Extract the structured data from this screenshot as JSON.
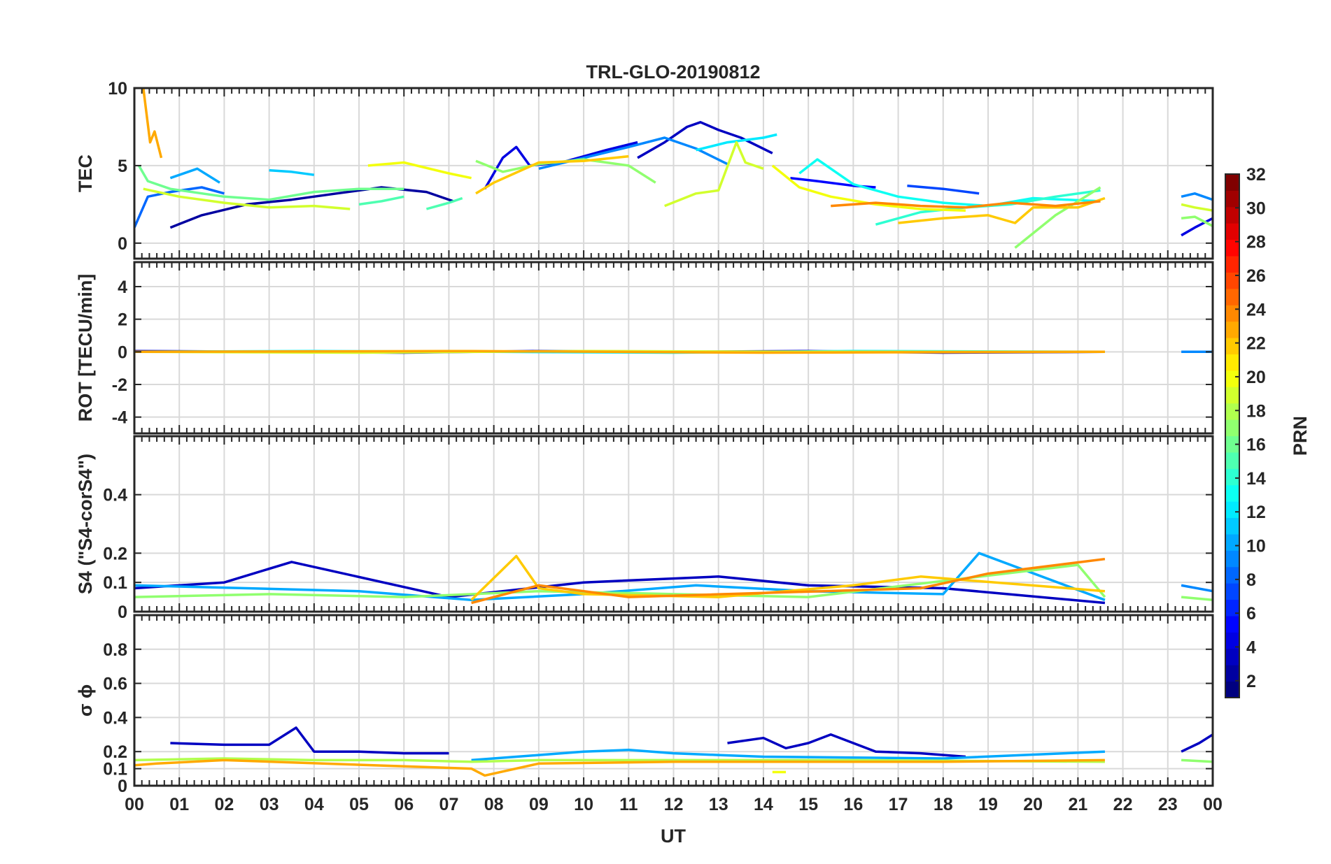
{
  "chart_data": {
    "type": "line",
    "title": "TRL-GLO-20190812",
    "xlabel": "UT",
    "x_ticks": [
      "00",
      "01",
      "02",
      "03",
      "04",
      "05",
      "06",
      "07",
      "08",
      "09",
      "10",
      "11",
      "12",
      "13",
      "14",
      "15",
      "16",
      "17",
      "18",
      "19",
      "20",
      "21",
      "22",
      "23",
      "00"
    ],
    "xlim": [
      0,
      24
    ],
    "grid": true,
    "colorbar": {
      "label": "PRN",
      "range": [
        1,
        32
      ],
      "ticks": [
        "2",
        "4",
        "6",
        "8",
        "10",
        "12",
        "14",
        "16",
        "18",
        "20",
        "22",
        "24",
        "26",
        "28",
        "30",
        "32"
      ],
      "colormap": "jet"
    },
    "panels": [
      {
        "ylabel": "TEC",
        "ylim": [
          -1,
          10
        ],
        "yticks": [
          "0",
          "5",
          "10"
        ],
        "series": [
          {
            "prn": 2,
            "x": [
              0.8,
              1.5,
              2.5,
              3.5,
              4.5,
              5.5,
              6.5,
              7.1
            ],
            "y": [
              1.0,
              1.8,
              2.5,
              2.8,
              3.2,
              3.6,
              3.3,
              2.7
            ]
          },
          {
            "prn": 3,
            "x": [
              11.2,
              11.8,
              12.3,
              12.6,
              13.0,
              13.5,
              14.2
            ],
            "y": [
              5.5,
              6.5,
              7.5,
              7.8,
              7.3,
              6.8,
              5.8
            ]
          },
          {
            "prn": 4,
            "x": [
              7.8,
              8.2,
              8.5,
              8.8,
              9.5,
              10.5,
              11.2
            ],
            "y": [
              3.5,
              5.5,
              6.2,
              5.0,
              5.2,
              6.0,
              6.5
            ]
          },
          {
            "prn": 5,
            "x": [
              14.6,
              15.2,
              16.0,
              16.5
            ],
            "y": [
              4.2,
              4.0,
              3.7,
              3.6
            ]
          },
          {
            "prn": 7,
            "x": [
              17.2,
              18.0,
              18.8
            ],
            "y": [
              3.7,
              3.5,
              3.2
            ]
          },
          {
            "prn": 8,
            "x": [
              0.0,
              0.3,
              0.8,
              1.5,
              2.0
            ],
            "y": [
              1.0,
              3.0,
              3.3,
              3.6,
              3.2
            ]
          },
          {
            "prn": 9,
            "x": [
              9.0,
              10.0,
              11.0,
              11.8,
              12.5,
              13.2
            ],
            "y": [
              4.8,
              5.5,
              6.2,
              6.8,
              6.1,
              5.1
            ]
          },
          {
            "prn": 10,
            "x": [
              0.8,
              1.4,
              1.9
            ],
            "y": [
              4.2,
              4.8,
              3.9
            ]
          },
          {
            "prn": 11,
            "x": [
              3.0,
              3.5,
              4.0
            ],
            "y": [
              4.7,
              4.6,
              4.4
            ]
          },
          {
            "prn": 12,
            "x": [
              12.5,
              13.2,
              14.0,
              14.3
            ],
            "y": [
              6.0,
              6.5,
              6.8,
              7.0
            ]
          },
          {
            "prn": 13,
            "x": [
              14.8,
              15.2,
              16.0,
              17.0,
              18.0,
              19.0,
              20.0,
              21.5
            ],
            "y": [
              4.5,
              5.4,
              3.8,
              3.0,
              2.6,
              2.4,
              2.9,
              2.7
            ]
          },
          {
            "prn": 14,
            "x": [
              16.5,
              17.5,
              18.5,
              19.5,
              20.5,
              21.5
            ],
            "y": [
              1.2,
              2.0,
              2.3,
              2.5,
              3.0,
              3.4
            ]
          },
          {
            "prn": 15,
            "x": [
              5.0,
              5.5,
              6.0
            ],
            "y": [
              2.5,
              2.7,
              3.0
            ]
          },
          {
            "prn": 15,
            "x": [
              6.5,
              7.0,
              7.3
            ],
            "y": [
              2.2,
              2.6,
              2.9
            ]
          },
          {
            "prn": 16,
            "x": [
              0.1,
              0.3,
              0.8,
              2.0,
              3.0,
              4.0,
              5.0,
              6.0
            ],
            "y": [
              5.0,
              4.0,
              3.5,
              3.0,
              2.8,
              3.3,
              3.5,
              3.5
            ]
          },
          {
            "prn": 17,
            "x": [
              7.6,
              8.2,
              9.0,
              10.0,
              11.0,
              11.6
            ],
            "y": [
              5.3,
              4.6,
              5.1,
              5.4,
              5.0,
              3.9
            ]
          },
          {
            "prn": 17,
            "x": [
              19.6,
              20.5,
              21.5
            ],
            "y": [
              -0.3,
              1.8,
              3.6
            ]
          },
          {
            "prn": 19,
            "x": [
              11.8,
              12.5,
              13.0,
              13.4,
              13.6,
              14.0
            ],
            "y": [
              2.4,
              3.2,
              3.4,
              6.5,
              5.2,
              4.8
            ]
          },
          {
            "prn": 19,
            "x": [
              0.2,
              1.0,
              2.0,
              3.0,
              4.0,
              4.8
            ],
            "y": [
              3.5,
              3.0,
              2.6,
              2.3,
              2.4,
              2.2
            ]
          },
          {
            "prn": 20,
            "x": [
              5.2,
              6.0,
              7.0,
              7.5
            ],
            "y": [
              5.0,
              5.2,
              4.5,
              4.2
            ]
          },
          {
            "prn": 20,
            "x": [
              14.2,
              14.8,
              15.5,
              16.5,
              17.5,
              18.5
            ],
            "y": [
              5.0,
              3.6,
              3.0,
              2.5,
              2.2,
              2.1
            ]
          },
          {
            "prn": 22,
            "x": [
              7.6,
              8.0,
              9.0,
              10.0,
              11.0
            ],
            "y": [
              3.2,
              3.9,
              5.2,
              5.3,
              5.6
            ]
          },
          {
            "prn": 22,
            "x": [
              17.0,
              18.0,
              19.0,
              19.6,
              20.0,
              21.0,
              21.6
            ],
            "y": [
              1.3,
              1.6,
              1.8,
              1.3,
              2.3,
              2.3,
              2.9
            ]
          },
          {
            "prn": 23,
            "x": [
              0.2,
              0.35,
              0.45,
              0.6
            ],
            "y": [
              10.0,
              6.5,
              7.2,
              5.5
            ]
          },
          {
            "prn": 24,
            "x": [
              15.5,
              16.5,
              17.5,
              18.5,
              19.5,
              20.5,
              21.5
            ],
            "y": [
              2.4,
              2.6,
              2.4,
              2.3,
              2.6,
              2.4,
              2.7
            ]
          },
          {
            "prn": 4,
            "x": [
              23.3,
              23.6,
              24.0
            ],
            "y": [
              0.5,
              1.0,
              1.6
            ]
          },
          {
            "prn": 9,
            "x": [
              23.3,
              23.6,
              24.0
            ],
            "y": [
              3.0,
              3.2,
              2.8
            ]
          },
          {
            "prn": 17,
            "x": [
              23.3,
              23.6,
              24.0
            ],
            "y": [
              1.6,
              1.7,
              1.1
            ]
          },
          {
            "prn": 19,
            "x": [
              23.3,
              23.6,
              24.0
            ],
            "y": [
              2.5,
              2.3,
              2.1
            ]
          }
        ]
      },
      {
        "ylabel": "ROT [TECU/min]",
        "ylim": [
          -5,
          5.5
        ],
        "yticks": [
          "-4",
          "-2",
          "0",
          "2",
          "4"
        ],
        "series": [
          {
            "prn": 3,
            "x": [
              0.0,
              3.0,
              6.0,
              9.0,
              12.0,
              15.0,
              18.0,
              21.6
            ],
            "y": [
              0.05,
              0.0,
              -0.05,
              0.05,
              0.0,
              0.05,
              -0.05,
              0.0
            ]
          },
          {
            "prn": 12,
            "x": [
              0.0,
              4.0,
              8.0,
              12.0,
              16.0,
              21.6
            ],
            "y": [
              0.0,
              0.05,
              0.0,
              -0.05,
              0.05,
              0.0
            ]
          },
          {
            "prn": 19,
            "x": [
              0.0,
              5.0,
              10.0,
              15.0,
              21.6
            ],
            "y": [
              0.0,
              -0.05,
              0.05,
              0.0,
              0.0
            ]
          },
          {
            "prn": 23,
            "x": [
              0.0,
              7.5,
              14.0,
              21.6
            ],
            "y": [
              0.0,
              0.05,
              -0.05,
              0.0
            ]
          },
          {
            "prn": 9,
            "x": [
              23.3,
              24.0
            ],
            "y": [
              0.0,
              0.0
            ]
          }
        ]
      },
      {
        "ylabel": "S4 (\"S4-corS4\")",
        "ylim": [
          0,
          0.6
        ],
        "yticks": [
          "0",
          "0.1",
          "0.2",
          "0.4"
        ],
        "series": [
          {
            "prn": 3,
            "x": [
              0.0,
              2.0,
              3.5,
              7.0,
              10.0,
              13.0,
              15.0,
              18.0,
              21.6
            ],
            "y": [
              0.08,
              0.1,
              0.17,
              0.05,
              0.1,
              0.12,
              0.09,
              0.08,
              0.03
            ]
          },
          {
            "prn": 10,
            "x": [
              0.0,
              2.5,
              5.0,
              7.5,
              10.0,
              12.5,
              15.0,
              18.0,
              18.8,
              21.6
            ],
            "y": [
              0.09,
              0.08,
              0.07,
              0.04,
              0.06,
              0.09,
              0.07,
              0.06,
              0.2,
              0.04
            ]
          },
          {
            "prn": 17,
            "x": [
              0.0,
              3.0,
              6.0,
              9.0,
              12.0,
              15.0,
              21.0,
              21.6
            ],
            "y": [
              0.05,
              0.06,
              0.05,
              0.07,
              0.06,
              0.05,
              0.16,
              0.05
            ]
          },
          {
            "prn": 22,
            "x": [
              7.5,
              8.5,
              9.0,
              10.0,
              13.0,
              16.0,
              17.5,
              21.6
            ],
            "y": [
              0.04,
              0.19,
              0.08,
              0.06,
              0.05,
              0.09,
              0.12,
              0.07
            ]
          },
          {
            "prn": 24,
            "x": [
              7.5,
              9.0,
              11.0,
              17.5,
              19.0,
              21.6
            ],
            "y": [
              0.03,
              0.09,
              0.05,
              0.08,
              0.13,
              0.18
            ]
          },
          {
            "prn": 9,
            "x": [
              23.3,
              24.0
            ],
            "y": [
              0.09,
              0.07
            ]
          },
          {
            "prn": 17,
            "x": [
              23.3,
              24.0
            ],
            "y": [
              0.05,
              0.04
            ]
          }
        ]
      },
      {
        "ylabel": "σ ϕ",
        "ylim": [
          0,
          1
        ],
        "yticks": [
          "0",
          "0.1",
          "0.2",
          "0.4",
          "0.6",
          "0.8"
        ],
        "series": [
          {
            "prn": 3,
            "x": [
              0.8,
              2.0,
              3.0,
              3.6,
              4.0,
              5.0,
              6.0,
              7.0
            ],
            "y": [
              0.25,
              0.24,
              0.24,
              0.34,
              0.2,
              0.2,
              0.19,
              0.19
            ]
          },
          {
            "prn": 3,
            "x": [
              13.2,
              14.0,
              14.5,
              15.0,
              15.5,
              16.5,
              17.5,
              18.5
            ],
            "y": [
              0.25,
              0.28,
              0.22,
              0.25,
              0.3,
              0.2,
              0.19,
              0.17
            ]
          },
          {
            "prn": 10,
            "x": [
              7.5,
              9.0,
              10.0,
              11.0,
              12.0,
              13.0,
              14.0,
              18.0,
              21.6
            ],
            "y": [
              0.15,
              0.18,
              0.2,
              0.21,
              0.19,
              0.18,
              0.17,
              0.16,
              0.2
            ]
          },
          {
            "prn": 18,
            "x": [
              0.0,
              2.0,
              4.0,
              6.0,
              7.5,
              9.0,
              12.0,
              14.0,
              16.0,
              21.6
            ],
            "y": [
              0.15,
              0.16,
              0.15,
              0.15,
              0.14,
              0.15,
              0.15,
              0.15,
              0.15,
              0.14
            ]
          },
          {
            "prn": 20,
            "x": [
              14.2,
              14.5
            ],
            "y": [
              0.08,
              0.08
            ]
          },
          {
            "prn": 23,
            "x": [
              0.0,
              0.5,
              2.0,
              7.5,
              7.8,
              9.0,
              12.0,
              15.0,
              18.0,
              21.6
            ],
            "y": [
              0.12,
              0.13,
              0.15,
              0.1,
              0.06,
              0.13,
              0.14,
              0.14,
              0.14,
              0.15
            ]
          },
          {
            "prn": 3,
            "x": [
              23.3,
              23.7,
              24.0
            ],
            "y": [
              0.2,
              0.25,
              0.3
            ]
          },
          {
            "prn": 17,
            "x": [
              23.3,
              24.0
            ],
            "y": [
              0.15,
              0.14
            ]
          }
        ]
      }
    ]
  }
}
